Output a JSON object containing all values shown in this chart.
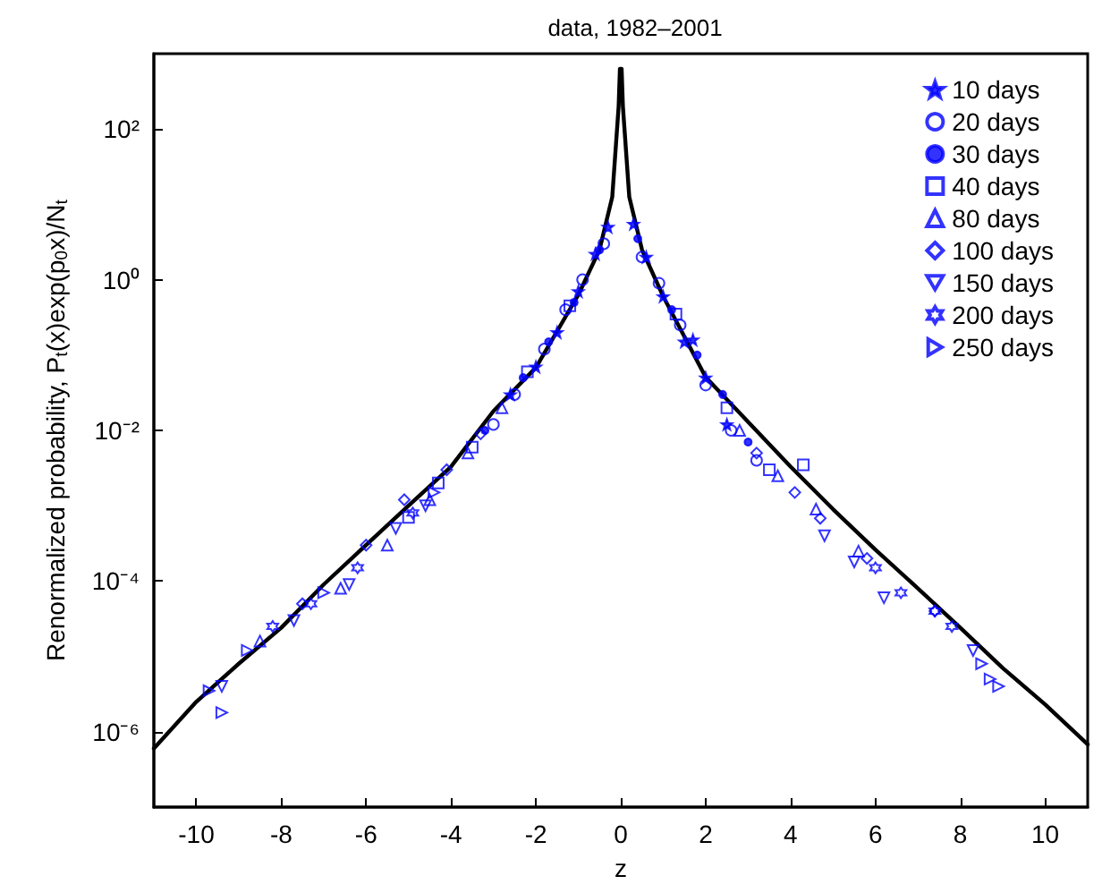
{
  "chart_data": {
    "type": "scatter",
    "title": "data, 1982–2001",
    "xlabel": "z",
    "ylabel": "Renormalized probability, P$_{t}$(x)exp(p$_{0}$x)/N$_{t}$",
    "xlim": [
      -11,
      11
    ],
    "xticks": [
      -10,
      -8,
      -6,
      -4,
      -2,
      0,
      2,
      4,
      6,
      8,
      10
    ],
    "log": "y",
    "ylim": [
      1e-07,
      1000
    ],
    "yticks": [
      {
        "value": 1e-06,
        "label": "10⁻⁶"
      },
      {
        "value": 0.0001,
        "label": "10⁻⁴"
      },
      {
        "value": 0.01,
        "label": "10⁻²"
      },
      {
        "value": 1,
        "label": "10⁰"
      },
      {
        "value": 100,
        "label": "10²"
      }
    ],
    "grid": false,
    "legend": "top right",
    "series": [
      {
        "name": "10 days",
        "color": "#0000ff",
        "marker": "star",
        "x": [
          -0.3,
          -0.6,
          -1,
          -1.5,
          -2,
          -2.6,
          0.3,
          0.6,
          1,
          1.5,
          1.7,
          2,
          2.5
        ],
        "values": [
          5,
          2.2,
          0.7,
          0.2,
          0.07,
          0.03,
          5.5,
          2,
          0.6,
          0.15,
          0.16,
          0.05,
          0.012
        ]
      },
      {
        "name": "20 days",
        "color": "#0000ff",
        "marker": "circle",
        "x": [
          -0.4,
          -0.9,
          -1.3,
          -1.8,
          -2.5,
          -3,
          0.5,
          0.9,
          1.4,
          2,
          2.6,
          3.2
        ],
        "values": [
          3,
          1,
          0.4,
          0.12,
          0.03,
          0.012,
          2,
          0.9,
          0.25,
          0.04,
          0.01,
          0.004
        ]
      },
      {
        "name": "30 days",
        "color": "#0000ff",
        "marker": "point",
        "x": [
          -0.5,
          -1.1,
          -1.7,
          -2.3,
          -3.2,
          0.4,
          1.2,
          1.8,
          2.4,
          3
        ],
        "values": [
          2.5,
          0.5,
          0.15,
          0.05,
          0.01,
          3.5,
          0.4,
          0.1,
          0.03,
          0.007
        ]
      },
      {
        "name": "40 days",
        "color": "#0000ff",
        "marker": "square",
        "x": [
          -1.2,
          -2.2,
          -3.5,
          -4.3,
          -5,
          1.3,
          2.5,
          3.5,
          4.3
        ],
        "values": [
          0.45,
          0.06,
          0.006,
          0.002,
          0.0007,
          0.35,
          0.02,
          0.003,
          0.0035
        ]
      },
      {
        "name": "80 days",
        "color": "#0000ff",
        "marker": "triangle",
        "x": [
          -2.8,
          -3.6,
          -4.5,
          -5.5,
          -6.6,
          -8.5,
          2.8,
          3.7,
          4.6,
          5.6
        ],
        "values": [
          0.02,
          0.005,
          0.0012,
          0.0003,
          8e-05,
          1.6e-05,
          0.01,
          0.0025,
          0.0009,
          0.00025
        ]
      },
      {
        "name": "100 days",
        "color": "#0000ff",
        "marker": "diamond",
        "x": [
          -3.3,
          -4.1,
          -5.1,
          -6,
          -7.5,
          3.2,
          4.1,
          4.7,
          5.8,
          7.4
        ],
        "values": [
          0.009,
          0.003,
          0.0012,
          0.0003,
          5e-05,
          0.005,
          0.0015,
          0.00068,
          0.0002,
          4e-05
        ]
      },
      {
        "name": "150 days",
        "color": "#0000ff",
        "marker": "triangle-down",
        "x": [
          -4.6,
          -5.3,
          -6.4,
          -7.7,
          -9.4,
          4.8,
          5.5,
          6.2,
          8.3
        ],
        "values": [
          0.001,
          0.0005,
          9e-05,
          3e-05,
          4e-06,
          0.0004,
          0.00018,
          6e-05,
          1.2e-05
        ]
      },
      {
        "name": "200 days",
        "color": "#0000ff",
        "marker": "cross",
        "x": [
          -4.9,
          -6.2,
          -7.3,
          -8.2,
          6,
          6.6,
          7.4,
          7.8
        ],
        "values": [
          0.0008,
          0.00015,
          5e-05,
          2.5e-05,
          0.00015,
          7e-05,
          4e-05,
          2.5e-05
        ]
      },
      {
        "name": "250 days",
        "color": "#0000ff",
        "marker": "triangle-right",
        "x": [
          -4.4,
          -7,
          -8.8,
          -9.7,
          -9.4,
          8.5,
          8.7,
          8.9
        ],
        "values": [
          0.0015,
          7e-05,
          1.2e-05,
          3.5e-06,
          1.8e-06,
          8e-06,
          5e-06,
          4e-06
        ]
      },
      {
        "type": "line",
        "color": "#000000",
        "marker": "none",
        "line_style": "solid",
        "x": [
          -11,
          -10,
          -9,
          -8,
          -7,
          -6,
          -5,
          -4,
          -3,
          -2,
          -1,
          -0.5,
          -0.2,
          -0.05,
          -0.02,
          0.02,
          0.05,
          0.2,
          0.5,
          1,
          2,
          3,
          4,
          5,
          6,
          7,
          8,
          9,
          10,
          11
        ],
        "values": [
          6e-07,
          2.5e-06,
          8e-06,
          2.4e-05,
          9e-05,
          0.0003,
          0.001,
          0.0033,
          0.018,
          0.068,
          0.63,
          2.5,
          12.6,
          200,
          630,
          630,
          200,
          12.6,
          2.5,
          0.6,
          0.051,
          0.013,
          0.0033,
          0.0009,
          0.00026,
          8e-05,
          2.4e-05,
          7e-06,
          2.3e-06,
          6.8e-07
        ]
      }
    ]
  }
}
